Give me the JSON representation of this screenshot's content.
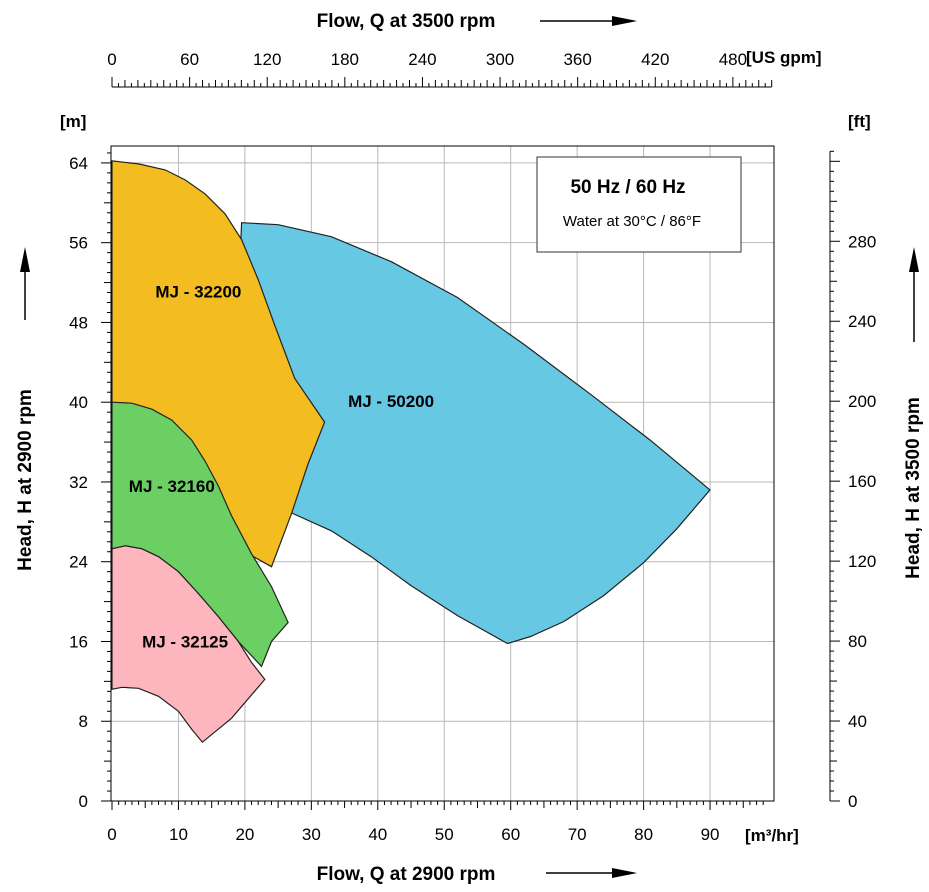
{
  "chart_data": {
    "type": "area",
    "title": "",
    "top_axis": {
      "title": "Flow, Q at 3500 rpm",
      "unit": "[US gpm]",
      "ticks": [
        0,
        60,
        120,
        180,
        240,
        300,
        360,
        420,
        480
      ],
      "range": [
        0,
        500
      ]
    },
    "bottom_axis": {
      "title": "Flow, Q at 2900 rpm",
      "unit": "[m³/hr]",
      "ticks": [
        0,
        10,
        20,
        30,
        40,
        50,
        60,
        70,
        80,
        90
      ],
      "range": [
        0,
        100
      ]
    },
    "left_axis": {
      "title": "Head, H at 2900 rpm",
      "unit": "[m]",
      "ticks": [
        0,
        8,
        16,
        24,
        32,
        40,
        48,
        56,
        64
      ],
      "range": [
        0,
        64
      ]
    },
    "right_axis": {
      "title": "Head, H at 3500 rpm",
      "unit": "[ft]",
      "ticks": [
        0,
        40,
        80,
        120,
        160,
        200,
        240,
        280
      ],
      "range": [
        0,
        310
      ]
    },
    "grid": true,
    "legend_box": {
      "title": "50 Hz / 60 Hz",
      "subtitle": "Water at 30°C / 86°F",
      "placement": "top-right"
    },
    "series": [
      {
        "name": "MJ - 50200",
        "color": "#67c8e4",
        "label_at": [
          42,
          39.5
        ],
        "points": [
          [
            19.5,
            58
          ],
          [
            25,
            57.8
          ],
          [
            33,
            56.6
          ],
          [
            42,
            54.1
          ],
          [
            52,
            50.5
          ],
          [
            62,
            45.8
          ],
          [
            72,
            40.8
          ],
          [
            81,
            36.2
          ],
          [
            90,
            31.2
          ],
          [
            85,
            27.3
          ],
          [
            80,
            23.9
          ],
          [
            74,
            20.6
          ],
          [
            68,
            18
          ],
          [
            63,
            16.5
          ],
          [
            59.5,
            15.8
          ],
          [
            52,
            18.6
          ],
          [
            45,
            21.6
          ],
          [
            39,
            24.5
          ],
          [
            33,
            27.1
          ],
          [
            27,
            28.9
          ],
          [
            23,
            30.5
          ],
          [
            21,
            34
          ],
          [
            19,
            40
          ],
          [
            19,
            50
          ]
        ]
      },
      {
        "name": "MJ - 32200",
        "color": "#f3bd22",
        "label_at": [
          13,
          50.5
        ],
        "points": [
          [
            0,
            64.2
          ],
          [
            4,
            63.9
          ],
          [
            8,
            63.3
          ],
          [
            11,
            62.3
          ],
          [
            14,
            60.9
          ],
          [
            17,
            58.9
          ],
          [
            19.5,
            56.3
          ],
          [
            22,
            52.3
          ],
          [
            24.5,
            47.7
          ],
          [
            27.5,
            42.4
          ],
          [
            32,
            38
          ],
          [
            29.5,
            33.8
          ],
          [
            27,
            28.8
          ],
          [
            24,
            23.5
          ],
          [
            20,
            25
          ],
          [
            14,
            30
          ],
          [
            5,
            38
          ],
          [
            0,
            40
          ]
        ]
      },
      {
        "name": "MJ - 32160",
        "color": "#6ccf63",
        "label_at": [
          9,
          31
        ]
      },
      {
        "name": "MJ - 32125",
        "color": "#fdb6bd",
        "label_at": [
          11,
          15.4
        ],
        "points": [
          [
            0,
            25.3
          ],
          [
            2,
            25.6
          ],
          [
            4.5,
            25.3
          ],
          [
            7,
            24.5
          ],
          [
            10,
            23
          ],
          [
            13,
            20.8
          ],
          [
            16,
            18.5
          ],
          [
            19,
            16
          ],
          [
            21,
            13.9
          ],
          [
            23,
            12.2
          ],
          [
            18,
            8.3
          ],
          [
            13.6,
            5.9
          ],
          [
            12,
            7.2
          ],
          [
            10,
            9
          ],
          [
            7,
            10.5
          ],
          [
            4,
            11.3
          ],
          [
            1.5,
            11.4
          ],
          [
            0,
            11.2
          ]
        ]
      }
    ],
    "series_extra": {
      "MJ - 32160_points": [
        [
          0,
          40
        ],
        [
          3,
          39.9
        ],
        [
          6,
          39.3
        ],
        [
          9,
          38.2
        ],
        [
          12,
          36.2
        ],
        [
          14,
          34.1
        ],
        [
          16,
          31.6
        ],
        [
          18,
          28.6
        ],
        [
          21,
          24.8
        ],
        [
          24,
          21.5
        ],
        [
          26.5,
          17.9
        ],
        [
          24,
          16
        ],
        [
          22.5,
          13.5
        ],
        [
          19,
          16
        ],
        [
          16,
          18.5
        ],
        [
          13,
          20.8
        ],
        [
          10,
          23
        ],
        [
          7,
          24.5
        ],
        [
          4.5,
          25.3
        ],
        [
          2,
          25.6
        ],
        [
          0,
          25.3
        ]
      ]
    }
  }
}
